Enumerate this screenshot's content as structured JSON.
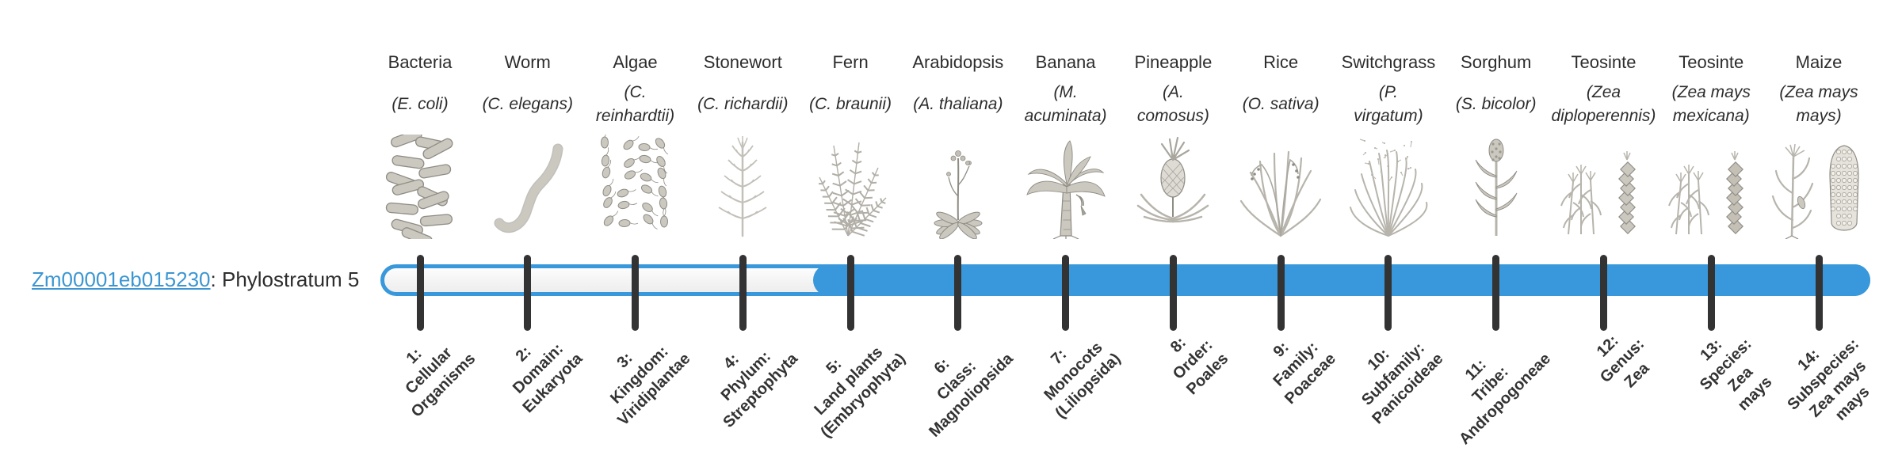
{
  "gene": {
    "id": "Zm00001eb015230",
    "label_suffix": ": Phylostratum 5",
    "phylostratum": 5
  },
  "colors": {
    "bar_blue": "#3898db",
    "tick_dark": "#333333",
    "link_blue": "#3b96d2",
    "icon_gray": "#b7b4ac"
  },
  "timeline": {
    "stratum_count": 14,
    "filled_from_stratum": 5
  },
  "organisms": [
    {
      "name": "Bacteria",
      "sci_lines": [
        "(E. coli)"
      ],
      "icon": "bacteria-icon",
      "stratum_lines": [
        "1:",
        "Cellular",
        "Organisms"
      ]
    },
    {
      "name": "Worm",
      "sci_lines": [
        "(C. elegans)"
      ],
      "icon": "worm-icon",
      "stratum_lines": [
        "2:",
        "Domain:",
        "Eukaryota"
      ]
    },
    {
      "name": "Algae",
      "sci_lines": [
        "(C.",
        "reinhardtii)"
      ],
      "icon": "algae-icon",
      "stratum_lines": [
        "3:",
        "Kingdom:",
        "Viridiplantae"
      ]
    },
    {
      "name": "Stonewort",
      "sci_lines": [
        "(C. richardii)"
      ],
      "icon": "stonewort-icon",
      "stratum_lines": [
        "4:",
        "Phylum:",
        "Streptophyta"
      ]
    },
    {
      "name": "Fern",
      "sci_lines": [
        "(C. braunii)"
      ],
      "icon": "fern-icon",
      "stratum_lines": [
        "5:",
        "Land plants",
        "(Embryophyta)"
      ]
    },
    {
      "name": "Arabidopsis",
      "sci_lines": [
        "(A. thaliana)"
      ],
      "icon": "arabidopsis-icon",
      "stratum_lines": [
        "6:",
        "Class:",
        "Magnoliopsida"
      ]
    },
    {
      "name": "Banana",
      "sci_lines": [
        "(M.",
        "acuminata)"
      ],
      "icon": "banana-icon",
      "stratum_lines": [
        "7:",
        "Monocots",
        "(Liliopsida)"
      ]
    },
    {
      "name": "Pineapple",
      "sci_lines": [
        "(A.",
        "comosus)"
      ],
      "icon": "pineapple-icon",
      "stratum_lines": [
        "8:",
        "Order:",
        "Poales"
      ]
    },
    {
      "name": "Rice",
      "sci_lines": [
        "(O. sativa)"
      ],
      "icon": "rice-icon",
      "stratum_lines": [
        "9:",
        "Family:",
        "Poaceae"
      ]
    },
    {
      "name": "Switchgrass",
      "sci_lines": [
        "(P.",
        "virgatum)"
      ],
      "icon": "switchgrass-icon",
      "stratum_lines": [
        "10:",
        "Subfamily:",
        "Panicoideae"
      ]
    },
    {
      "name": "Sorghum",
      "sci_lines": [
        "(S. bicolor)"
      ],
      "icon": "sorghum-icon",
      "stratum_lines": [
        "11:",
        "Tribe:",
        "Andropogoneae"
      ]
    },
    {
      "name": "Teosinte",
      "sci_lines": [
        "(Zea",
        "diploperennis)"
      ],
      "icon": "teosinte-diploperennis-icon",
      "stratum_lines": [
        "12:",
        "Genus:",
        "Zea"
      ]
    },
    {
      "name": "Teosinte",
      "sci_lines": [
        "(Zea mays",
        "mexicana)"
      ],
      "icon": "teosinte-mexicana-icon",
      "stratum_lines": [
        "13:",
        "Species:",
        "Zea",
        "mays"
      ]
    },
    {
      "name": "Maize",
      "sci_lines": [
        "(Zea mays",
        "mays)"
      ],
      "icon": "maize-icon",
      "stratum_lines": [
        "14:",
        "Subspecies:",
        "Zea mays",
        "mays"
      ]
    }
  ]
}
